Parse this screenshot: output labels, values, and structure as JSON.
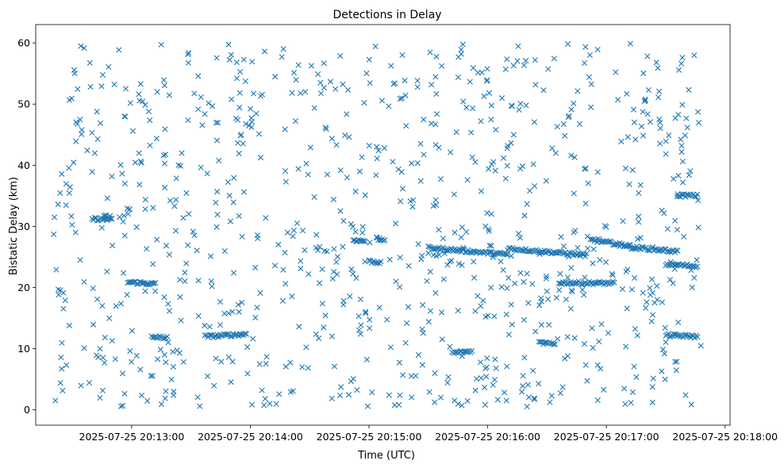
{
  "chart_data": {
    "type": "scatter",
    "title": "Detections in Delay",
    "xlabel": "Time (UTC)",
    "ylabel": "Bistatic Delay (km)",
    "marker": "x",
    "color": "#1f77b4",
    "xlim_seconds": [
      -48.5,
      302.5
    ],
    "ylim": [
      -2.5,
      63
    ],
    "x_ticks": [
      {
        "s": 0,
        "label": "2025-07-25 20:13:00"
      },
      {
        "s": 60,
        "label": "2025-07-25 20:14:00"
      },
      {
        "s": 120,
        "label": "2025-07-25 20:15:00"
      },
      {
        "s": 180,
        "label": "2025-07-25 20:16:00"
      },
      {
        "s": 240,
        "label": "2025-07-25 20:17:00"
      },
      {
        "s": 300,
        "label": "2025-07-25 20:18:00"
      }
    ],
    "y_ticks": [
      0,
      10,
      20,
      30,
      40,
      50,
      60
    ],
    "data_time_range_seconds": [
      -40,
      288
    ],
    "tracks": [
      {
        "t0": -20,
        "t1": -12,
        "y0": 31.2,
        "y1": 31.2
      },
      {
        "t0": -14,
        "t1": -10,
        "y0": 31.5,
        "y1": 31.1
      },
      {
        "t0": -2,
        "t1": 12,
        "y0": 20.9,
        "y1": 20.6
      },
      {
        "t0": 10,
        "t1": 18,
        "y0": 11.9,
        "y1": 11.8
      },
      {
        "t0": 38,
        "t1": 58,
        "y0": 12.0,
        "y1": 12.4
      },
      {
        "t0": 112,
        "t1": 118,
        "y0": 27.8,
        "y1": 27.6
      },
      {
        "t0": 120,
        "t1": 126,
        "y0": 24.3,
        "y1": 24.1
      },
      {
        "t0": 124,
        "t1": 128,
        "y0": 27.9,
        "y1": 27.8
      },
      {
        "t0": 150,
        "t1": 190,
        "y0": 26.5,
        "y1": 25.4
      },
      {
        "t0": 162,
        "t1": 172,
        "y0": 9.3,
        "y1": 9.6
      },
      {
        "t0": 190,
        "t1": 230,
        "y0": 26.4,
        "y1": 25.3
      },
      {
        "t0": 206,
        "t1": 214,
        "y0": 11.0,
        "y1": 10.7
      },
      {
        "t0": 216,
        "t1": 244,
        "y0": 20.8,
        "y1": 20.7
      },
      {
        "t0": 232,
        "t1": 252,
        "y0": 27.8,
        "y1": 26.8
      },
      {
        "t0": 252,
        "t1": 276,
        "y0": 26.6,
        "y1": 25.9
      },
      {
        "t0": 270,
        "t1": 286,
        "y0": 12.2,
        "y1": 12.0
      },
      {
        "t0": 276,
        "t1": 286,
        "y0": 35.1,
        "y1": 35.0
      },
      {
        "t0": 270,
        "t1": 286,
        "y0": 23.8,
        "y1": 23.5
      }
    ],
    "scatter_points_count": 900
  }
}
